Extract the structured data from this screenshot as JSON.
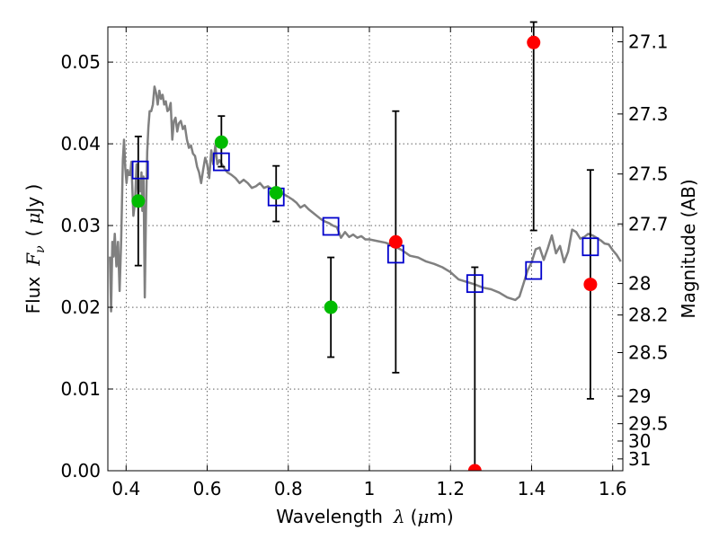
{
  "chart_data": {
    "type": "scatter",
    "xlabel": "Wavelength",
    "xlabel_math": "λ",
    "xlabel_unit_open": "(",
    "xlabel_unit_math": "μ",
    "xlabel_unit_close": "m)",
    "ylabel": "Flux",
    "ylabel_math": "F",
    "ylabel_math_sub": "ν",
    "ylabel_unit_open": "(",
    "ylabel_unit_math": "μ",
    "ylabel_unit_close": "Jy )",
    "y2label": "Magnitude (AB)",
    "xlim": [
      0.355,
      1.625
    ],
    "ylim": [
      0.0,
      0.0543
    ],
    "grid": true,
    "xticks": [
      0.4,
      0.6,
      0.8,
      1.0,
      1.2,
      1.4,
      1.6
    ],
    "xtick_labels": [
      "0.4",
      "0.6",
      "0.8",
      "1",
      "1.2",
      "1.4",
      "1.6"
    ],
    "yticks": [
      0.0,
      0.01,
      0.02,
      0.03,
      0.04,
      0.05
    ],
    "ytick_labels": [
      "0.00",
      "0.01",
      "0.02",
      "0.03",
      "0.04",
      "0.05"
    ],
    "mag_ticks": [
      27.1,
      27.3,
      27.5,
      27.7,
      28,
      28.2,
      28.5,
      29,
      29.5,
      30,
      31
    ],
    "mag_tick_labels": [
      "27.1",
      "27.3",
      "27.5",
      "27.7",
      "28",
      "28.2",
      "28.5",
      "29",
      "29.5",
      "30",
      "31"
    ],
    "colors": {
      "detection": "#00bb00",
      "upper": "#ff0000",
      "model_box": "#0000cc",
      "sed": "#808080",
      "errorbar": "#000000"
    },
    "series": [
      {
        "role": "sed_model_line",
        "x": [
          0.36,
          0.363,
          0.366,
          0.369,
          0.372,
          0.376,
          0.38,
          0.384,
          0.388,
          0.392,
          0.395,
          0.398,
          0.401,
          0.404,
          0.407,
          0.41,
          0.413,
          0.418,
          0.422,
          0.426,
          0.43,
          0.433,
          0.436,
          0.438,
          0.44,
          0.443,
          0.446,
          0.449,
          0.452,
          0.455,
          0.458,
          0.462,
          0.466,
          0.47,
          0.474,
          0.478,
          0.482,
          0.486,
          0.49,
          0.494,
          0.498,
          0.502,
          0.506,
          0.51,
          0.514,
          0.518,
          0.522,
          0.526,
          0.53,
          0.535,
          0.54,
          0.545,
          0.55,
          0.555,
          0.56,
          0.565,
          0.57,
          0.575,
          0.58,
          0.585,
          0.59,
          0.595,
          0.6,
          0.605,
          0.61,
          0.615,
          0.62,
          0.625,
          0.63,
          0.635,
          0.64,
          0.645,
          0.65,
          0.66,
          0.67,
          0.68,
          0.69,
          0.7,
          0.71,
          0.72,
          0.73,
          0.74,
          0.75,
          0.76,
          0.77,
          0.78,
          0.79,
          0.8,
          0.81,
          0.82,
          0.83,
          0.84,
          0.85,
          0.86,
          0.87,
          0.88,
          0.89,
          0.9,
          0.91,
          0.92,
          0.93,
          0.94,
          0.95,
          0.96,
          0.97,
          0.98,
          0.99,
          1.0,
          1.02,
          1.04,
          1.06,
          1.08,
          1.1,
          1.12,
          1.14,
          1.16,
          1.18,
          1.2,
          1.22,
          1.24,
          1.26,
          1.28,
          1.3,
          1.32,
          1.34,
          1.36,
          1.37,
          1.38,
          1.39,
          1.4,
          1.41,
          1.42,
          1.43,
          1.44,
          1.45,
          1.46,
          1.47,
          1.48,
          1.49,
          1.5,
          1.51,
          1.52,
          1.53,
          1.54,
          1.55,
          1.56,
          1.57,
          1.58,
          1.59,
          1.6,
          1.61,
          1.62
        ],
        "y": [
          0.0262,
          0.0195,
          0.028,
          0.0262,
          0.029,
          0.025,
          0.028,
          0.022,
          0.0285,
          0.038,
          0.0405,
          0.037,
          0.0352,
          0.0368,
          0.0362,
          0.0362,
          0.0378,
          0.0312,
          0.0328,
          0.0375,
          0.0335,
          0.0355,
          0.0342,
          0.0365,
          0.0318,
          0.036,
          0.0212,
          0.0315,
          0.039,
          0.042,
          0.044,
          0.044,
          0.0448,
          0.047,
          0.0462,
          0.0448,
          0.0465,
          0.0455,
          0.046,
          0.0448,
          0.0452,
          0.044,
          0.0442,
          0.045,
          0.0405,
          0.0428,
          0.0432,
          0.0415,
          0.0425,
          0.0428,
          0.0418,
          0.0422,
          0.0405,
          0.0395,
          0.0398,
          0.0388,
          0.0385,
          0.0372,
          0.0365,
          0.0352,
          0.0368,
          0.0383,
          0.0375,
          0.0358,
          0.0392,
          0.0375,
          0.0398,
          0.0375,
          0.038,
          0.0376,
          0.0372,
          0.0368,
          0.0365,
          0.0362,
          0.0358,
          0.0352,
          0.0356,
          0.0352,
          0.0346,
          0.0348,
          0.0352,
          0.0346,
          0.0348,
          0.0344,
          0.0342,
          0.034,
          0.0338,
          0.0335,
          0.0332,
          0.0328,
          0.0322,
          0.0325,
          0.032,
          0.0316,
          0.0312,
          0.0308,
          0.0305,
          0.0303,
          0.03,
          0.0298,
          0.0285,
          0.0292,
          0.0286,
          0.0289,
          0.0285,
          0.0287,
          0.0283,
          0.0283,
          0.0281,
          0.0279,
          0.0275,
          0.027,
          0.0263,
          0.0261,
          0.0256,
          0.0253,
          0.0249,
          0.0243,
          0.0234,
          0.0231,
          0.0228,
          0.0224,
          0.0222,
          0.0218,
          0.0212,
          0.0209,
          0.0213,
          0.0229,
          0.0245,
          0.0255,
          0.0271,
          0.0273,
          0.0258,
          0.0272,
          0.0288,
          0.0266,
          0.0275,
          0.0255,
          0.0268,
          0.0295,
          0.0292,
          0.0284,
          0.0286,
          0.029,
          0.0288,
          0.0285,
          0.0282,
          0.0278,
          0.0277,
          0.027,
          0.0264,
          0.0256
        ]
      },
      {
        "role": "model_prediction_squares",
        "x": [
          0.435,
          0.635,
          0.77,
          0.905,
          1.065,
          1.26,
          1.405,
          1.545
        ],
        "y": [
          0.0368,
          0.0378,
          0.0335,
          0.0299,
          0.0265,
          0.0229,
          0.0245,
          0.0274
        ]
      },
      {
        "role": "detections_green",
        "x": [
          0.43,
          0.635,
          0.77,
          0.905
        ],
        "y": [
          0.033,
          0.0402,
          0.034,
          0.02
        ],
        "err_low": [
          0.0079,
          0.003,
          0.0035,
          0.0061
        ],
        "err_high": [
          0.0079,
          0.0032,
          0.0033,
          0.0061
        ]
      },
      {
        "role": "upper_limits_red",
        "x": [
          1.065,
          1.26,
          1.405,
          1.545
        ],
        "y": [
          0.028,
          0.0,
          0.0524,
          0.0228
        ],
        "err_low": [
          0.016,
          0.0,
          0.023,
          0.014
        ],
        "err_high": [
          0.016,
          0.0249,
          0.0025,
          0.014
        ]
      }
    ]
  }
}
